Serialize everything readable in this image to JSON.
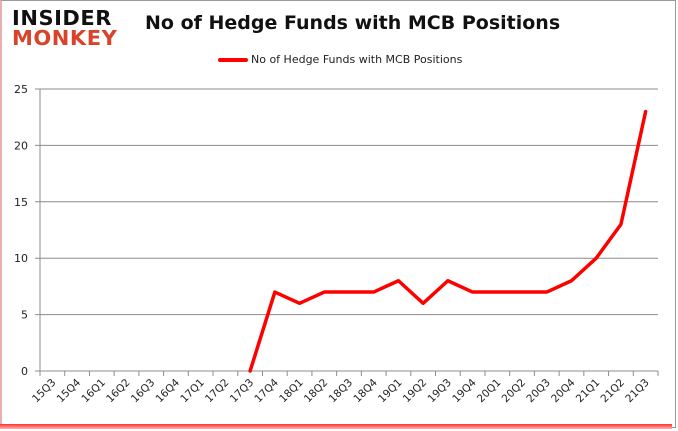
{
  "logo": {
    "line1": "INSIDER",
    "line2": "MONKEY"
  },
  "colors": {
    "series": "#ff0000",
    "grid": "#8c8c8c",
    "logo_red": "#d9432a"
  },
  "chart_data": {
    "type": "line",
    "title": "No of Hedge Funds with MCB Positions",
    "xlabel": "",
    "ylabel": "",
    "ylim": [
      0,
      25
    ],
    "yticks": [
      0,
      5,
      10,
      15,
      20,
      25
    ],
    "grid": true,
    "legend_position": "top",
    "categories": [
      "15Q3",
      "15Q4",
      "16Q1",
      "16Q2",
      "16Q3",
      "16Q4",
      "17Q1",
      "17Q2",
      "17Q3",
      "17Q4",
      "18Q1",
      "18Q2",
      "18Q3",
      "18Q4",
      "19Q1",
      "19Q2",
      "19Q3",
      "19Q4",
      "20Q1",
      "20Q2",
      "20Q3",
      "20Q4",
      "21Q1",
      "21Q2",
      "21Q3"
    ],
    "series": [
      {
        "name": "No of Hedge Funds with MCB Positions",
        "values": [
          null,
          null,
          null,
          null,
          null,
          null,
          null,
          null,
          0,
          7,
          6,
          7,
          7,
          7,
          8,
          6,
          8,
          7,
          7,
          7,
          7,
          8,
          10,
          13,
          23
        ]
      }
    ]
  }
}
